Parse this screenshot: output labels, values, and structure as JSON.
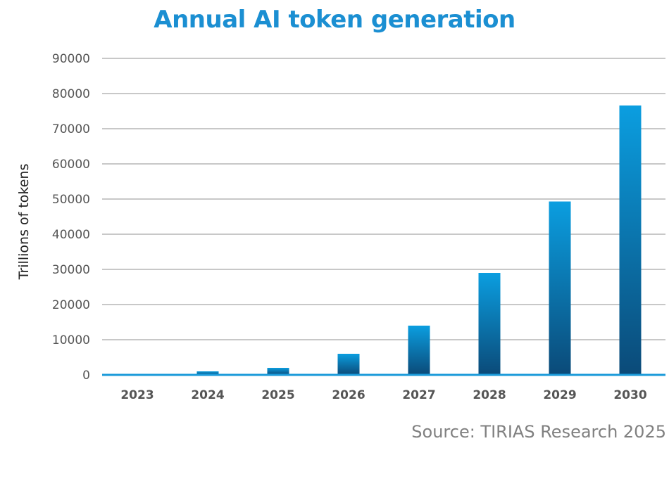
{
  "chart_data": {
    "type": "bar",
    "title": "Annual AI token generation",
    "ylabel": "Trillions of tokens",
    "xlabel": "",
    "categories": [
      "2023",
      "2024",
      "2025",
      "2026",
      "2027",
      "2028",
      "2029",
      "2030"
    ],
    "values": [
      250,
      1000,
      2000,
      6000,
      14000,
      29000,
      49300,
      76600
    ],
    "ylim": [
      0,
      90000
    ],
    "yticks": [
      0,
      10000,
      20000,
      30000,
      40000,
      50000,
      60000,
      70000,
      80000,
      90000
    ],
    "grid": true,
    "legend": "none",
    "colors": {
      "bar_top": "#0b9ee0",
      "bar_bottom": "#0b4a78",
      "baseline": "#1a9ad9",
      "grid": "#a8a8a8",
      "title": "#1b8fd2"
    }
  },
  "source": "Source: TIRIAS Research 2025"
}
